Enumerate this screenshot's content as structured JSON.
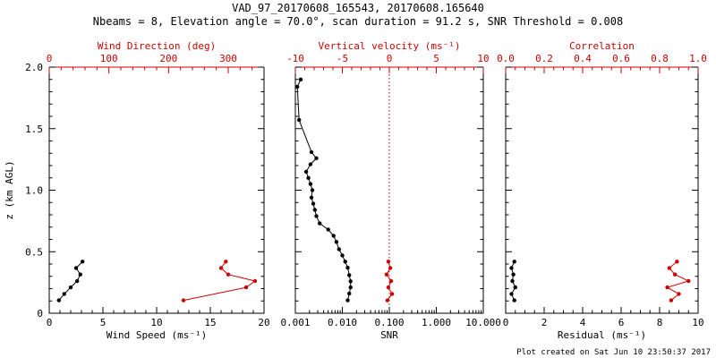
{
  "chart_data": {
    "type": "line",
    "title": "VAD_97_20170608_165543, 20170608.165640",
    "subtitle": "Nbeams = 8, Elevation angle = 70.0°, scan duration = 91.2 s, SNR Threshold = 0.008",
    "footer": "Plot created on Sat Jun 10 23:50:37 2017",
    "colors": {
      "black": "#000000",
      "red": "#cc0000",
      "background": "#ffffff"
    },
    "ylabel": "z (km AGL)",
    "ylim": [
      0,
      2
    ],
    "yticks": [
      0,
      0.5,
      1,
      1.5,
      2
    ],
    "ytick_labels": [
      "0",
      "0.5",
      "1.0",
      "1.5",
      "2.0"
    ],
    "legend": "none",
    "grid": false,
    "panels": [
      {
        "id": "wind",
        "bottom_axis": {
          "label": "Wind Speed (ms⁻¹)",
          "scale": "linear",
          "lim": [
            0,
            20
          ],
          "ticks": [
            0,
            5,
            10,
            15,
            20
          ],
          "labels": [
            "0",
            "5",
            "10",
            "15",
            "20"
          ],
          "minor": 5
        },
        "top_axis": {
          "label": "Wind Direction (deg)",
          "scale": "linear",
          "lim": [
            0,
            360
          ],
          "ticks": [
            0,
            100,
            200,
            300
          ],
          "labels": [
            "0",
            "100",
            "200",
            "300"
          ],
          "minor": 5
        },
        "series": [
          {
            "name": "wind-speed",
            "axis": "bottom",
            "color": "black",
            "z": [
              0.105,
              0.157,
              0.21,
              0.262,
              0.315,
              0.367,
              0.42
            ],
            "values": [
              0.9,
              1.4,
              2.0,
              2.6,
              2.9,
              2.5,
              3.1
            ]
          },
          {
            "name": "wind-direction",
            "axis": "top",
            "color": "red",
            "z": [
              0.105,
              0.21,
              0.262,
              0.315,
              0.367,
              0.42
            ],
            "values": [
              225,
              330,
              345,
              300,
              288,
              296
            ]
          }
        ]
      },
      {
        "id": "snr",
        "bottom_axis": {
          "label": "SNR",
          "scale": "log",
          "lim": [
            0.001,
            10
          ],
          "ticks": [
            0.001,
            0.01,
            0.1,
            1,
            10
          ],
          "labels": [
            "0.001",
            "0.010",
            "0.100",
            "1.000",
            "10.000"
          ],
          "minor": 0
        },
        "top_axis": {
          "label": "Vertical velocity (ms⁻¹)",
          "scale": "linear",
          "lim": [
            -10,
            10
          ],
          "ticks": [
            -10,
            -5,
            0,
            5,
            10
          ],
          "labels": [
            "-10",
            "-5",
            "0",
            "5",
            "10"
          ],
          "minor": 5
        },
        "vline": 0,
        "series": [
          {
            "name": "snr-profile",
            "axis": "bottom",
            "color": "black",
            "z": [
              1.9,
              1.84,
              1.57,
              1.31,
              1.26,
              1.21,
              1.15,
              1.1,
              1.05,
              1.0,
              0.94,
              0.89,
              0.84,
              0.79,
              0.73,
              0.68,
              0.63,
              0.58,
              0.52,
              0.47,
              0.42,
              0.37,
              0.31,
              0.26,
              0.21,
              0.16,
              0.105
            ],
            "values": [
              0.0013,
              0.0011,
              0.0012,
              0.0022,
              0.0028,
              0.0021,
              0.0017,
              0.0019,
              0.0021,
              0.0023,
              0.0022,
              0.0024,
              0.0026,
              0.0028,
              0.0033,
              0.005,
              0.0065,
              0.0075,
              0.0085,
              0.01,
              0.0115,
              0.013,
              0.014,
              0.015,
              0.015,
              0.014,
              0.013
            ]
          },
          {
            "name": "vertical-velocity",
            "axis": "top",
            "color": "red",
            "z": [
              0.105,
              0.157,
              0.21,
              0.262,
              0.315,
              0.367,
              0.42
            ],
            "values": [
              -0.2,
              0.3,
              -0.1,
              0.2,
              -0.3,
              0.1,
              -0.1
            ]
          }
        ]
      },
      {
        "id": "residual",
        "bottom_axis": {
          "label": "Residual (ms⁻¹)",
          "scale": "linear",
          "lim": [
            0,
            10
          ],
          "ticks": [
            0,
            2,
            4,
            6,
            8,
            10
          ],
          "labels": [
            "0",
            "2",
            "4",
            "6",
            "8",
            "10"
          ],
          "minor": 4
        },
        "top_axis": {
          "label": "Correlation",
          "scale": "linear",
          "lim": [
            0,
            1
          ],
          "ticks": [
            0,
            0.2,
            0.4,
            0.6,
            0.8,
            1
          ],
          "labels": [
            "0.0",
            "0.2",
            "0.4",
            "0.6",
            "0.8",
            "1.0"
          ],
          "minor": 4
        },
        "series": [
          {
            "name": "residual",
            "axis": "bottom",
            "color": "black",
            "z": [
              0.105,
              0.157,
              0.21,
              0.262,
              0.315,
              0.367,
              0.42
            ],
            "values": [
              0.45,
              0.3,
              0.5,
              0.35,
              0.4,
              0.3,
              0.45
            ]
          },
          {
            "name": "correlation",
            "axis": "top",
            "color": "red",
            "z": [
              0.105,
              0.157,
              0.21,
              0.262,
              0.315,
              0.367,
              0.42
            ],
            "values": [
              0.86,
              0.9,
              0.84,
              0.95,
              0.88,
              0.85,
              0.89
            ]
          }
        ]
      }
    ]
  }
}
